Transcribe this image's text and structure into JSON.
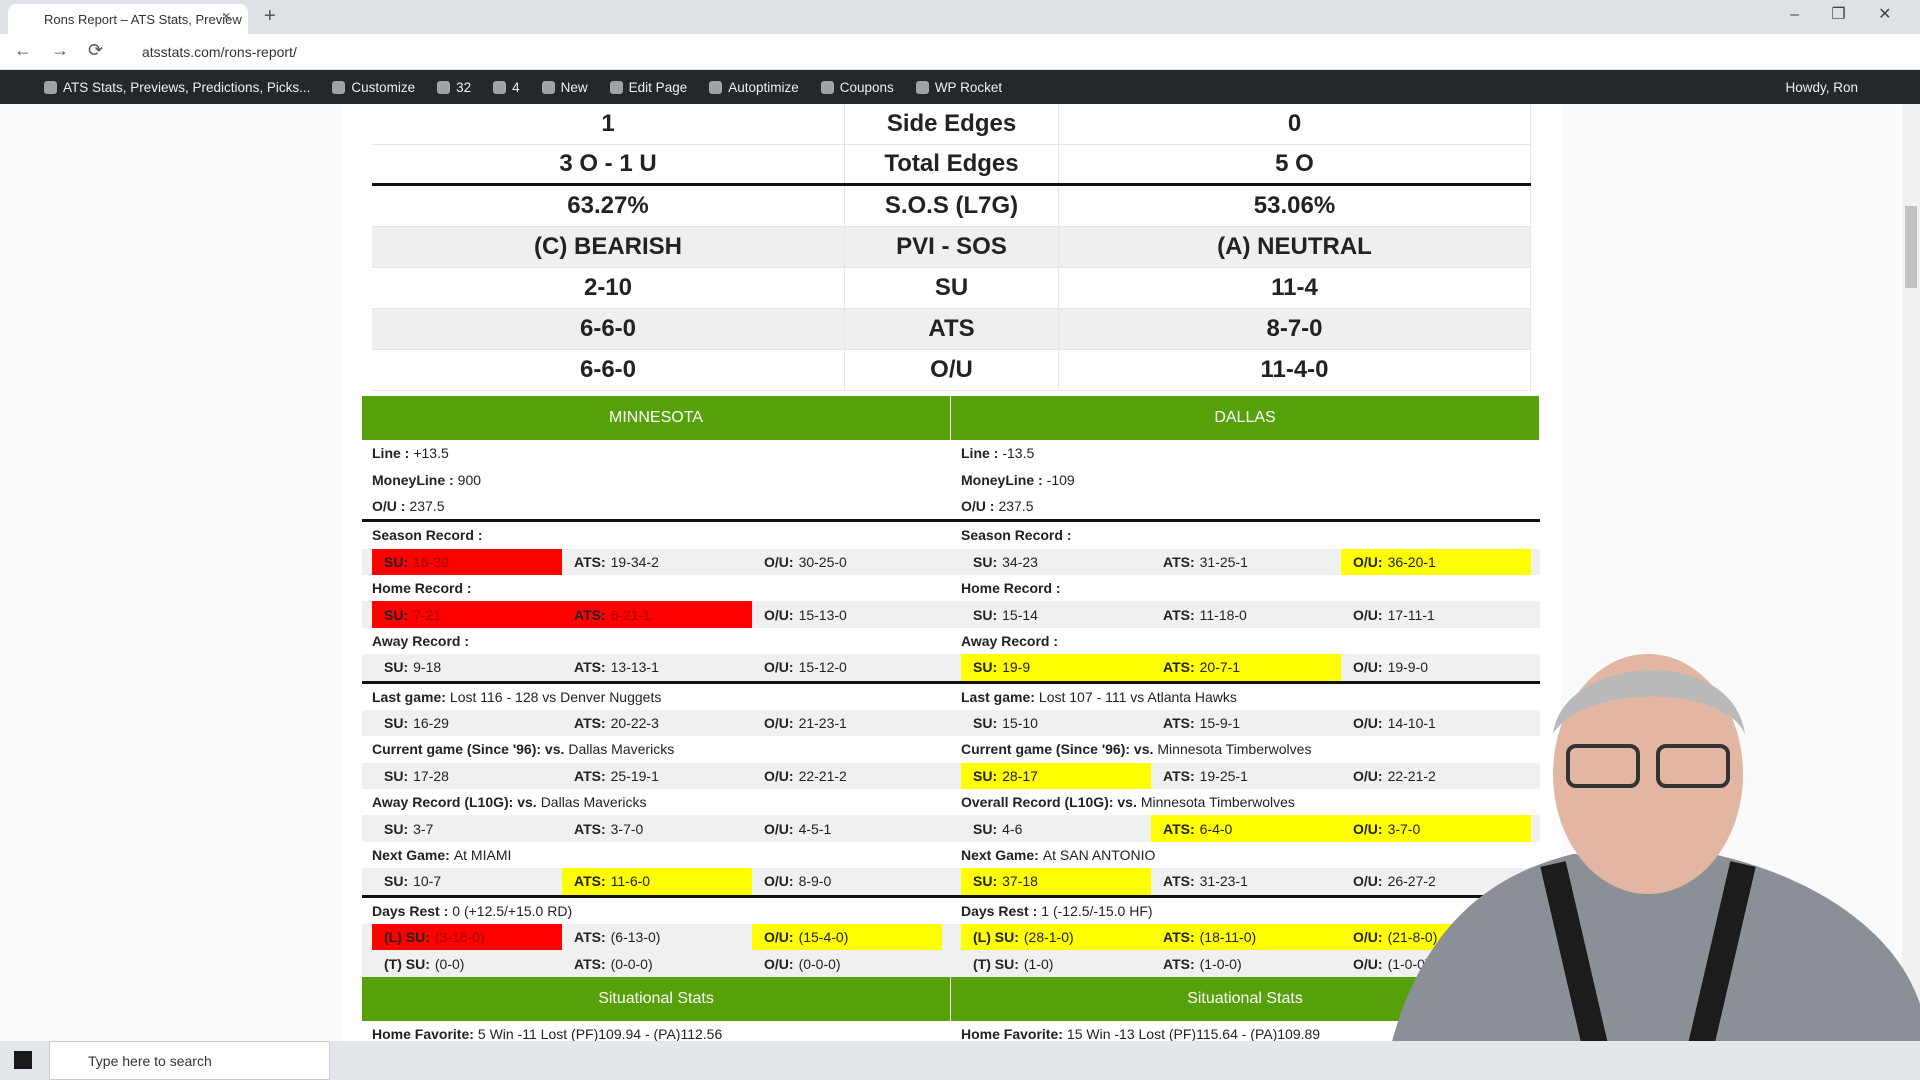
{
  "browser": {
    "tab_title": "Rons Report – ATS Stats, Preview",
    "url": "atsstats.com/rons-report/"
  },
  "admin_bar": {
    "items": [
      "ATS Stats, Previews, Predictions, Picks...",
      "Customize",
      "32",
      "4",
      "New",
      "Edit Page",
      "Autoptimize",
      "Coupons",
      "WP Rocket"
    ],
    "greeting": "Howdy, Ron"
  },
  "top_table": {
    "rows": [
      [
        "1",
        "Side Edges",
        "0"
      ],
      [
        "3 O - 1 U",
        "Total Edges",
        "5 O"
      ],
      [
        "63.27%",
        "S.O.S (L7G)",
        "53.06%"
      ],
      [
        "(C) BEARISH",
        "PVI - SOS",
        "(A) NEUTRAL"
      ],
      [
        "2-10",
        "SU",
        "11-4"
      ],
      [
        "6-6-0",
        "ATS",
        "8-7-0"
      ],
      [
        "6-6-0",
        "O/U",
        "11-4-0"
      ]
    ]
  },
  "teams": [
    {
      "name": "MINNESOTA",
      "groups": [
        [
          {
            "label": "Line :",
            "text": "+13.5"
          },
          {
            "label": "MoneyLine :",
            "text": "900"
          },
          {
            "label": "O/U :",
            "text": "237.5"
          }
        ],
        [
          {
            "label": "Season Record :"
          },
          {
            "cells": [
              {
                "label": "SU:",
                "value": "16-39",
                "highlight": "#ff0000"
              },
              {
                "label": "ATS:",
                "value": "19-34-2"
              },
              {
                "label": "O/U:",
                "value": "30-25-0"
              }
            ]
          },
          {
            "label": "Home Record :"
          },
          {
            "cells": [
              {
                "label": "SU:",
                "value": "7-21",
                "highlight": "#ff0000"
              },
              {
                "label": "ATS:",
                "value": "6-21-1",
                "highlight": "#ff0000"
              },
              {
                "label": "O/U:",
                "value": "15-13-0"
              }
            ]
          },
          {
            "label": "Away Record :"
          },
          {
            "cells": [
              {
                "label": "SU:",
                "value": "9-18"
              },
              {
                "label": "ATS:",
                "value": "13-13-1"
              },
              {
                "label": "O/U:",
                "value": "15-12-0"
              }
            ]
          }
        ],
        [
          {
            "label": "Last game:",
            "text": "Lost 116 - 128 vs Denver Nuggets"
          },
          {
            "cells": [
              {
                "label": "SU:",
                "value": "16-29"
              },
              {
                "label": "ATS:",
                "value": "20-22-3"
              },
              {
                "label": "O/U:",
                "value": "21-23-1"
              }
            ]
          },
          {
            "label": "Current game (Since '96): vs.",
            "text": "Dallas Mavericks"
          },
          {
            "cells": [
              {
                "label": "SU:",
                "value": "17-28"
              },
              {
                "label": "ATS:",
                "value": "25-19-1"
              },
              {
                "label": "O/U:",
                "value": "22-21-2"
              }
            ]
          },
          {
            "label": "Away Record (L10G): vs.",
            "text": "Dallas Mavericks"
          },
          {
            "cells": [
              {
                "label": "SU:",
                "value": "3-7"
              },
              {
                "label": "ATS:",
                "value": "3-7-0"
              },
              {
                "label": "O/U:",
                "value": "4-5-1"
              }
            ]
          },
          {
            "label": "Next Game:",
            "text": "At MIAMI"
          },
          {
            "cells": [
              {
                "label": "SU:",
                "value": "10-7"
              },
              {
                "label": "ATS:",
                "value": "11-6-0",
                "highlight": "#ffff00"
              },
              {
                "label": "O/U:",
                "value": "8-9-0"
              }
            ]
          }
        ],
        [
          {
            "label": "Days Rest :",
            "text": "0 (+12.5/+15.0 RD)"
          },
          {
            "cells": [
              {
                "label": "(L) SU:",
                "value": "(3-16-0)",
                "highlight": "#ff0000"
              },
              {
                "label": "ATS:",
                "value": "(6-13-0)"
              },
              {
                "label": "O/U:",
                "value": "(15-4-0)",
                "highlight": "#ffff00"
              }
            ]
          },
          {
            "cells": [
              {
                "label": "(T) SU:",
                "value": "(0-0)"
              },
              {
                "label": "ATS:",
                "value": "(0-0-0)"
              },
              {
                "label": "O/U:",
                "value": "(0-0-0)"
              }
            ]
          }
        ]
      ],
      "situational": {
        "title": "Situational Stats",
        "rows": [
          {
            "label": "Home Favorite:",
            "text": "5 Win -11 Lost  (PF)109.94 - (PA)112.56"
          }
        ]
      }
    },
    {
      "name": "DALLAS",
      "groups": [
        [
          {
            "label": "Line :",
            "text": "-13.5"
          },
          {
            "label": "MoneyLine :",
            "text": "-109"
          },
          {
            "label": "O/U :",
            "text": "237.5"
          }
        ],
        [
          {
            "label": "Season Record :"
          },
          {
            "cells": [
              {
                "label": "SU:",
                "value": "34-23"
              },
              {
                "label": "ATS:",
                "value": "31-25-1"
              },
              {
                "label": "O/U:",
                "value": "36-20-1",
                "highlight": "#ffff00"
              }
            ]
          },
          {
            "label": "Home Record :"
          },
          {
            "cells": [
              {
                "label": "SU:",
                "value": "15-14"
              },
              {
                "label": "ATS:",
                "value": "11-18-0"
              },
              {
                "label": "O/U:",
                "value": "17-11-1"
              }
            ]
          },
          {
            "label": "Away Record :"
          },
          {
            "cells": [
              {
                "label": "SU:",
                "value": "19-9",
                "highlight": "#ffff00"
              },
              {
                "label": "ATS:",
                "value": "20-7-1",
                "highlight": "#ffff00"
              },
              {
                "label": "O/U:",
                "value": "19-9-0"
              }
            ]
          }
        ],
        [
          {
            "label": "Last game:",
            "text": "Lost 107 - 111 vs Atlanta Hawks"
          },
          {
            "cells": [
              {
                "label": "SU:",
                "value": "15-10"
              },
              {
                "label": "ATS:",
                "value": "15-9-1"
              },
              {
                "label": "O/U:",
                "value": "14-10-1"
              }
            ]
          },
          {
            "label": "Current game (Since '96): vs.",
            "text": "Minnesota Timberwolves"
          },
          {
            "cells": [
              {
                "label": "SU:",
                "value": "28-17",
                "highlight": "#ffff00"
              },
              {
                "label": "ATS:",
                "value": "19-25-1"
              },
              {
                "label": "O/U:",
                "value": "22-21-2"
              }
            ]
          },
          {
            "label": "Overall Record (L10G): vs.",
            "text": "Minnesota Timberwolves"
          },
          {
            "cells": [
              {
                "label": "SU:",
                "value": "4-6"
              },
              {
                "label": "ATS:",
                "value": "6-4-0",
                "highlight": "#ffff00"
              },
              {
                "label": "O/U:",
                "value": "3-7-0",
                "highlight": "#ffff00"
              }
            ]
          },
          {
            "label": "Next Game:",
            "text": "At SAN ANTONIO"
          },
          {
            "cells": [
              {
                "label": "SU:",
                "value": "37-18",
                "highlight": "#ffff00"
              },
              {
                "label": "ATS:",
                "value": "31-23-1"
              },
              {
                "label": "O/U:",
                "value": "26-27-2"
              }
            ]
          }
        ],
        [
          {
            "label": "Days Rest :",
            "text": "1 (-12.5/-15.0 HF)"
          },
          {
            "cells": [
              {
                "label": "(L) SU:",
                "value": "(28-1-0)",
                "highlight": "#ffff00"
              },
              {
                "label": "ATS:",
                "value": "(18-11-0)",
                "highlight": "#ffff00"
              },
              {
                "label": "O/U:",
                "value": "(21-8-0)",
                "highlight": "#ffff00"
              }
            ]
          },
          {
            "cells": [
              {
                "label": "(T) SU:",
                "value": "(1-0)"
              },
              {
                "label": "ATS:",
                "value": "(1-0-0)"
              },
              {
                "label": "O/U:",
                "value": "(1-0-0)"
              }
            ]
          }
        ]
      ],
      "situational": {
        "title": "Situational Stats",
        "rows": [
          {
            "label": "Home Favorite:",
            "text": "15 Win -13 Lost  (PF)115.64 - (PA)109.89"
          }
        ]
      }
    }
  ],
  "taskbar": {
    "search_placeholder": "Type here to search"
  }
}
